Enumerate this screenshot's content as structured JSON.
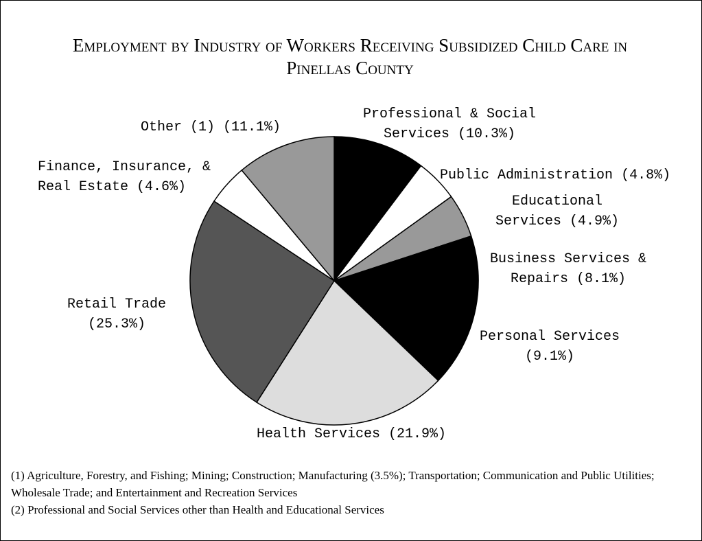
{
  "chart_data": {
    "type": "pie",
    "title": "Employment by Industry of Workers Receiving Subsidized Child Care in Pinellas County",
    "categories": [
      "Professional & Social Services",
      "Public Administration",
      "Educational Services",
      "Business Services & Repairs",
      "Personal Services",
      "Health Services",
      "Retail Trade",
      "Finance, Insurance, & Real Estate",
      "Other (1)"
    ],
    "values": [
      10.3,
      4.8,
      4.9,
      8.1,
      9.1,
      21.9,
      25.3,
      4.6,
      11.1
    ],
    "value_labels": [
      "(10.3%)",
      "(4.8%)",
      "(4.9%)",
      "(8.1%)",
      "(9.1%)",
      "(21.9%)",
      "(25.3%)",
      "(4.6%)",
      "(11.1%)"
    ],
    "colors": [
      "#000000",
      "#ffffff",
      "#999999",
      "#000000",
      "#000000",
      "#dddddd",
      "#555555",
      "#ffffff",
      "#999999"
    ],
    "footnotes": [
      "(1) Agriculture, Forestry, and Fishing; Mining; Construction; Manufacturing (3.5%); Transportation; Communication and Public Utilities; Wholesale Trade; and Entertainment and Recreation Services",
      "(2) Professional and Social Services other than Health and Educational Services"
    ]
  }
}
